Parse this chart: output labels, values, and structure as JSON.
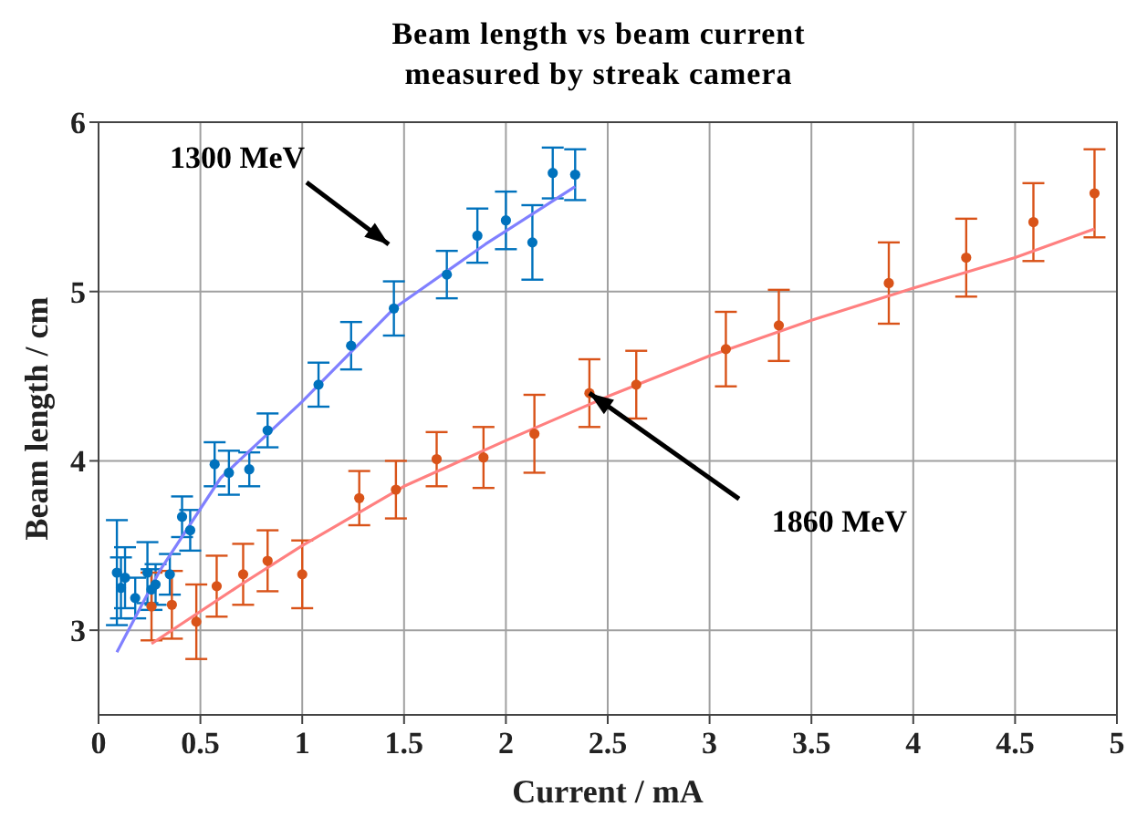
{
  "chart_data": {
    "type": "scatter",
    "title": "Beam length vs beam current measured by streak camera",
    "xlabel": "Current / mA",
    "ylabel": "Beam length / cm",
    "xlim": [
      0,
      5
    ],
    "xticks": [
      0,
      0.5,
      1,
      1.5,
      2,
      2.5,
      3,
      3.5,
      4,
      4.5,
      5
    ],
    "ylim": [
      2.5,
      6
    ],
    "yticks": [
      3,
      4,
      5,
      6
    ],
    "grid": true,
    "marker": "circle",
    "series": [
      {
        "type": "scatter",
        "color": "#0072bd",
        "x": [
          0.09,
          0.11,
          0.13,
          0.18,
          0.24,
          0.26,
          0.28,
          0.35,
          0.41,
          0.45,
          0.57,
          0.64,
          0.74,
          0.83,
          1.08,
          1.24,
          1.45,
          1.71,
          1.86,
          2.0,
          2.13,
          2.23,
          2.34
        ],
        "values": [
          3.34,
          3.25,
          3.31,
          3.19,
          3.34,
          3.24,
          3.27,
          3.33,
          3.67,
          3.59,
          3.98,
          3.93,
          3.95,
          4.18,
          4.45,
          4.68,
          4.9,
          5.1,
          5.33,
          5.42,
          5.29,
          5.7,
          5.69
        ],
        "errors": [
          0.31,
          0.18,
          0.18,
          0.12,
          0.18,
          0.12,
          0.12,
          0.12,
          0.12,
          0.12,
          0.13,
          0.13,
          0.1,
          0.1,
          0.13,
          0.14,
          0.16,
          0.14,
          0.16,
          0.17,
          0.22,
          0.15,
          0.15
        ]
      },
      {
        "type": "scatter",
        "color": "#d95319",
        "x": [
          0.26,
          0.36,
          0.48,
          0.58,
          0.71,
          0.83,
          1.0,
          1.28,
          1.46,
          1.66,
          1.89,
          2.14,
          2.41,
          2.64,
          3.08,
          3.34,
          3.88,
          4.26,
          4.59,
          4.89
        ],
        "values": [
          3.14,
          3.15,
          3.05,
          3.26,
          3.33,
          3.41,
          3.33,
          3.78,
          3.83,
          4.01,
          4.02,
          4.16,
          4.4,
          4.45,
          4.66,
          4.8,
          5.05,
          5.2,
          5.41,
          5.58
        ],
        "errors": [
          0.2,
          0.2,
          0.22,
          0.18,
          0.18,
          0.18,
          0.2,
          0.16,
          0.17,
          0.16,
          0.18,
          0.23,
          0.2,
          0.2,
          0.22,
          0.21,
          0.24,
          0.23,
          0.23,
          0.26
        ]
      },
      {
        "type": "line",
        "color": "#8080ff",
        "marker": "none",
        "x": [
          0.09,
          0.3,
          0.6,
          1.0,
          1.45,
          1.9,
          2.34
        ],
        "values": [
          2.87,
          3.35,
          3.9,
          4.35,
          4.9,
          5.28,
          5.62
        ]
      },
      {
        "type": "line",
        "color": "#ff8080",
        "marker": "none",
        "x": [
          0.26,
          0.7,
          1.0,
          1.5,
          2.0,
          2.5,
          3.0,
          3.5,
          4.0,
          4.5,
          4.89
        ],
        "values": [
          2.92,
          3.27,
          3.5,
          3.85,
          4.12,
          4.38,
          4.62,
          4.83,
          5.02,
          5.2,
          5.37
        ]
      }
    ],
    "annotations": [
      "1300 MeV",
      {
        "text": "1860 MeV",
        "x": 2.41,
        "y": 4.4
      }
    ]
  }
}
